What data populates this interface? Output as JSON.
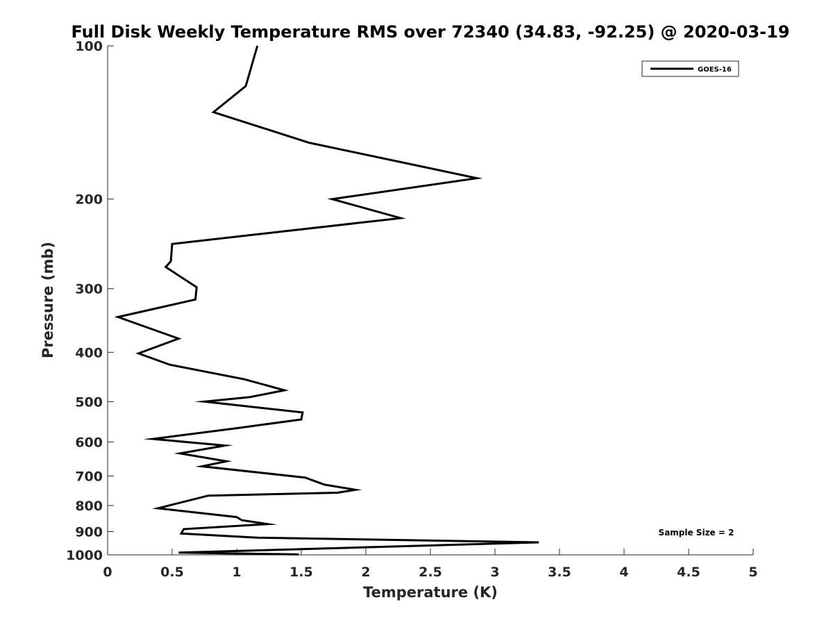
{
  "chart_data": {
    "type": "line",
    "title": "Full Disk Weekly Temperature RMS over 72340 (34.83, -92.25) @ 2020-03-19",
    "xlabel": "Temperature (K)",
    "ylabel": "Pressure (mb)",
    "xlim": [
      0,
      5
    ],
    "ylim": [
      100,
      1000
    ],
    "yscale": "log",
    "y_reversed": true,
    "grid": false,
    "legend_position": "top-right",
    "xticks": [
      0,
      0.5,
      1,
      1.5,
      2,
      2.5,
      3,
      3.5,
      4,
      4.5,
      5
    ],
    "xtick_labels": [
      "0",
      "0.5",
      "1",
      "1.5",
      "2",
      "2.5",
      "3",
      "3.5",
      "4",
      "4.5",
      "5"
    ],
    "yticks": [
      100,
      200,
      300,
      400,
      500,
      600,
      700,
      800,
      900,
      1000
    ],
    "ytick_labels": [
      "100",
      "200",
      "300",
      "400",
      "500",
      "600",
      "700",
      "800",
      "900",
      "1000"
    ],
    "series": [
      {
        "name": "GOES-16",
        "color": "#000000",
        "x": [
          1.16,
          1.07,
          0.82,
          1.56,
          2.86,
          1.74,
          2.27,
          0.5,
          0.49,
          0.45,
          0.69,
          0.68,
          0.08,
          0.55,
          0.24,
          0.48,
          1.06,
          1.37,
          1.1,
          0.75,
          1.51,
          1.5,
          1.02,
          0.35,
          0.91,
          0.56,
          0.92,
          0.73,
          1.53,
          1.68,
          1.92,
          1.78,
          0.78,
          0.39,
          1.0,
          1.04,
          1.24,
          0.59,
          0.57,
          1.16,
          3.34,
          0.55,
          1.48
        ],
        "y": [
          100,
          120,
          135,
          155,
          182,
          200,
          218,
          245,
          265,
          272,
          298,
          315,
          341,
          376,
          402,
          423,
          452,
          475,
          490,
          500,
          525,
          542,
          563,
          592,
          610,
          632,
          655,
          670,
          705,
          728,
          745,
          755,
          765,
          810,
          843,
          855,
          870,
          890,
          908,
          925,
          945,
          990,
          998
        ]
      }
    ],
    "legend": [
      {
        "label": "GOES-16"
      }
    ],
    "annotations": [
      {
        "text": "Sample Size = 2"
      }
    ]
  }
}
